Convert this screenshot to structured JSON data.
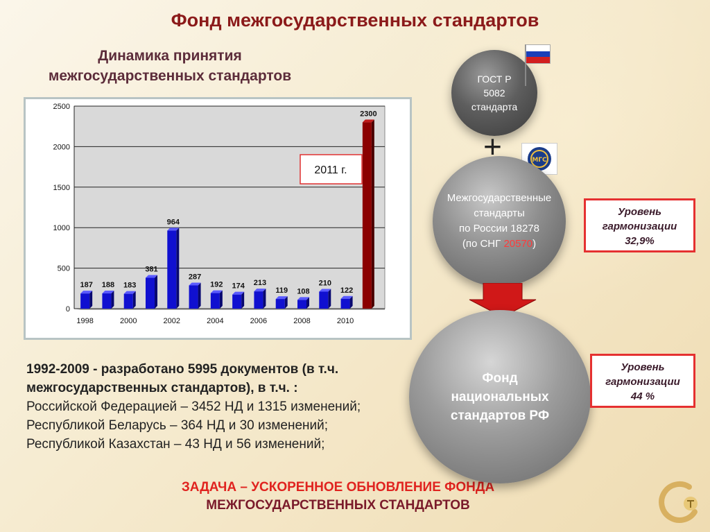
{
  "header": {
    "title": "Фонд межгосударственных стандартов"
  },
  "chart_block": {
    "subtitle_line1": "Динамика принятия",
    "subtitle_line2": "межгосударственных стандартов",
    "callout": "2011 г."
  },
  "chart_data": {
    "type": "bar",
    "categories": [
      "1998",
      "1999",
      "2000",
      "2001",
      "2002",
      "2003",
      "2004",
      "2005",
      "2006",
      "2007",
      "2008",
      "2009",
      "2010",
      "2011"
    ],
    "values": [
      187,
      188,
      183,
      381,
      964,
      287,
      192,
      174,
      213,
      119,
      108,
      210,
      122,
      2300
    ],
    "value_labels": [
      "187",
      "188",
      "183",
      "381",
      "964",
      "287",
      "192",
      "174",
      "213",
      "119",
      "108",
      "210",
      "122",
      "2300"
    ],
    "x_tick_labels": [
      "1998",
      "2000",
      "2002",
      "2004",
      "2006",
      "2008",
      "2010"
    ],
    "y_tick_labels": [
      "0",
      "500",
      "1000",
      "1500",
      "2000",
      "2500"
    ],
    "ylim": [
      0,
      2500
    ],
    "grid": true,
    "colors": {
      "series": "#1010d0",
      "highlight": "#8b0000"
    }
  },
  "note": {
    "bold_text": "1992-2009 - разработано 5995 документов (в т.ч. межгосударственных стандартов), в т.ч. :",
    "line_rf": "Российской Федерацией – 3452 НД и 1315 изменений;",
    "line_by": "Республикой Беларусь – 364 НД и 30 изменений;",
    "line_kz": "Республикой Казахстан – 43 НД и 56 изменений;"
  },
  "task": {
    "line1": "ЗАДАЧА – УСКОРЕННОЕ ОБНОВЛЕНИЕ ФОНДА",
    "line2": "МЕЖГОСУДАРСТВЕННЫХ СТАНДАРТОВ"
  },
  "spheres": {
    "gost": {
      "l1": "ГОСТ Р",
      "l2": "5082",
      "l3": "стандарта"
    },
    "plus": "+",
    "interstate": {
      "l1": "Межгосударственные",
      "l2": "стандарты",
      "l3": "по России 18278",
      "l4_prefix": "(по СНГ ",
      "l4_value": "20570",
      "l4_suffix": ")"
    },
    "national": {
      "l1": "Фонд",
      "l2": "национальных",
      "l3": "стандартов РФ"
    }
  },
  "harmonization": [
    {
      "l1": "Уровень",
      "l2": "гармонизации",
      "l3": "32,9%"
    },
    {
      "l1": "Уровень",
      "l2": "гармонизации",
      "l3": "44 %"
    }
  ],
  "emblem": {
    "text": "МГС"
  },
  "colors": {
    "title": "#8b1a1a",
    "accent_red": "#e53030",
    "arrow_red": "#d01818"
  }
}
